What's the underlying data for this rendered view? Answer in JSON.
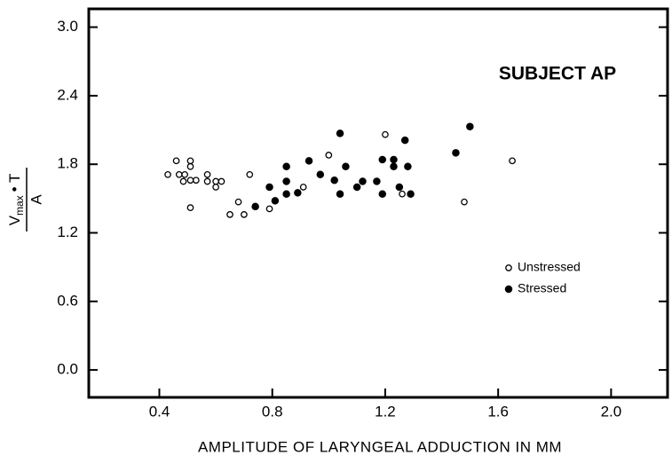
{
  "chart_data": {
    "type": "scatter",
    "annotation": "SUBJECT AP",
    "xlabel": "AMPLITUDE OF LARYNGEAL ADDUCTION IN MM",
    "ylabel": {
      "numerator_base": "V",
      "numerator_sub": "max",
      "numerator_rest": "• T",
      "denominator": "A"
    },
    "xlim": [
      0.15,
      2.2
    ],
    "ylim": [
      -0.24,
      3.16
    ],
    "xticks": [
      0.4,
      0.8,
      1.2,
      1.6,
      {
        "value": 2,
        "label": "2.0"
      }
    ],
    "yticks": [
      {
        "value": 0,
        "label": "0.0"
      },
      0.6,
      1.2,
      1.8,
      2.4,
      {
        "value": 3,
        "label": "3.0"
      }
    ],
    "legend": "center right",
    "series": [
      {
        "name": "Unstressed",
        "color": "#000000",
        "filled": false,
        "x": [
          0.43,
          0.46,
          0.47,
          0.485,
          0.49,
          0.51,
          0.51,
          0.51,
          0.51,
          0.53,
          0.57,
          0.57,
          0.6,
          0.6,
          0.62,
          0.65,
          0.68,
          0.7,
          0.72,
          0.79,
          0.91,
          1.0,
          1.2,
          1.26,
          1.48,
          1.65
        ],
        "values": [
          1.71,
          1.83,
          1.71,
          1.65,
          1.71,
          1.83,
          1.78,
          1.66,
          1.42,
          1.66,
          1.71,
          1.65,
          1.65,
          1.6,
          1.65,
          1.36,
          1.47,
          1.36,
          1.71,
          1.41,
          1.6,
          1.88,
          2.06,
          1.54,
          1.47,
          1.83
        ]
      },
      {
        "name": "Stressed",
        "color": "#000000",
        "filled": true,
        "x": [
          0.74,
          0.79,
          0.81,
          0.85,
          0.85,
          0.85,
          0.89,
          0.93,
          0.97,
          1.02,
          1.04,
          1.04,
          1.06,
          1.1,
          1.12,
          1.17,
          1.19,
          1.19,
          1.23,
          1.23,
          1.25,
          1.27,
          1.28,
          1.29,
          1.45,
          1.5
        ],
        "values": [
          1.43,
          1.6,
          1.48,
          1.78,
          1.65,
          1.54,
          1.55,
          1.83,
          1.71,
          1.66,
          2.07,
          1.54,
          1.78,
          1.6,
          1.65,
          1.65,
          1.84,
          1.54,
          1.84,
          1.78,
          1.6,
          2.01,
          1.78,
          1.54,
          1.9,
          2.13
        ]
      }
    ]
  }
}
